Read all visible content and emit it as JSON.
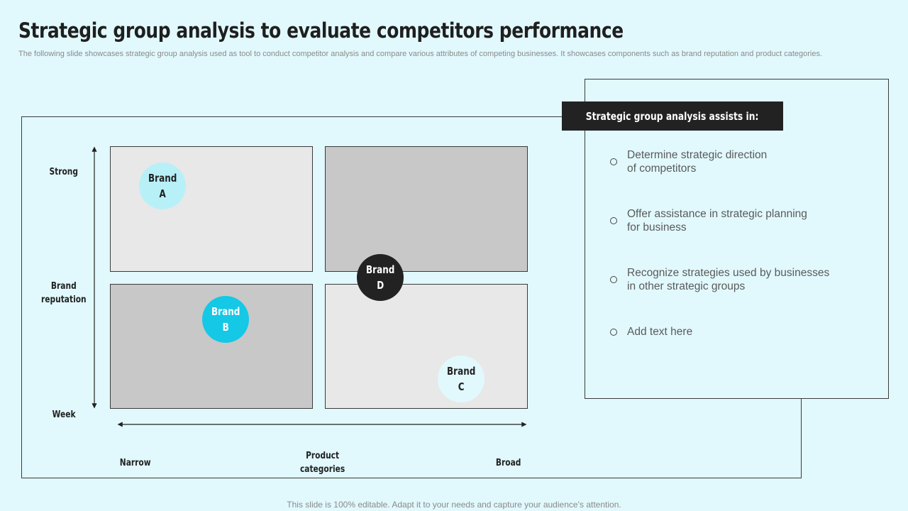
{
  "title": "Strategic group analysis to evaluate competitors performance",
  "subtitle": "The following slide showcases strategic group analysis used as tool to conduct competitor analysis and compare various attributes of competing businesses. It showcases components such as brand reputation and product categories.",
  "diagram": {
    "y_axis": {
      "top_label": "Strong",
      "middle_label": "Brand\nreputation",
      "bottom_label": "Week"
    },
    "x_axis": {
      "left_label": "Narrow",
      "middle_label": "Product\ncategories",
      "right_label": "Broad"
    },
    "quadrant_colors": {
      "top_left": "#e8e8e8",
      "top_right": "#c8c8c8",
      "bottom_left": "#c8c8c8",
      "bottom_right": "#e8e8e8"
    },
    "brands": [
      {
        "label": "Brand\nA",
        "fill": "#b8f0f8",
        "text_color": "#222222"
      },
      {
        "label": "Brand\nB",
        "fill": "#14c8e6",
        "text_color": "#ffffff"
      },
      {
        "label": "Brand\nC",
        "fill": "#e1f9fd",
        "text_color": "#222222"
      },
      {
        "label": "Brand\nD",
        "fill": "#222222",
        "text_color": "#ffffff"
      }
    ]
  },
  "panel": {
    "header": "Strategic group analysis assists in:",
    "items": [
      "Determine strategic direction\nof competitors",
      "Offer assistance in strategic planning\nfor business",
      "Recognize strategies used by businesses\nin other strategic groups",
      "Add text here"
    ]
  },
  "footer": "This slide is 100% editable. Adapt it to your needs and capture your audience’s attention."
}
